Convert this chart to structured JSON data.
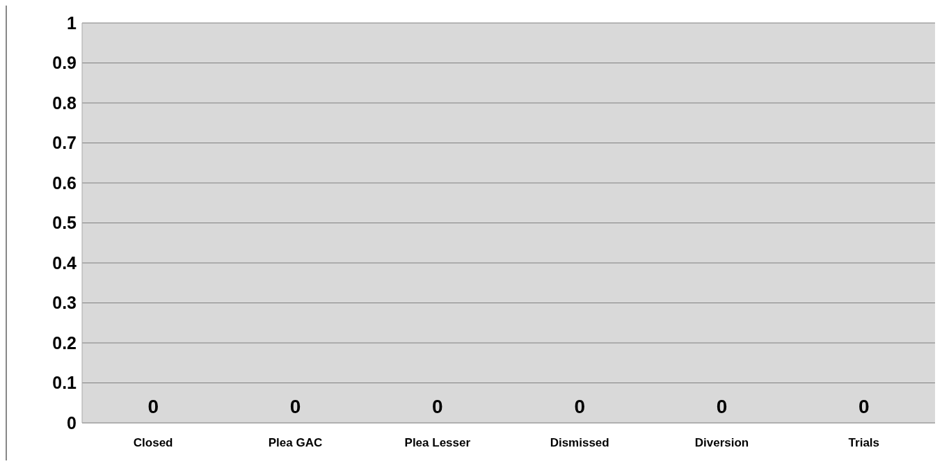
{
  "chart_data": {
    "type": "bar",
    "categories": [
      "Closed",
      "Plea GAC",
      "Plea Lesser",
      "Dismissed",
      "Diversion",
      "Trials"
    ],
    "values": [
      0,
      0,
      0,
      0,
      0,
      0
    ],
    "ylim": [
      0,
      1
    ],
    "yticks": [
      0,
      0.1,
      0.2,
      0.3,
      0.4,
      0.5,
      0.6,
      0.7,
      0.8,
      0.9,
      1
    ],
    "grid": "y",
    "data_labels": true
  }
}
